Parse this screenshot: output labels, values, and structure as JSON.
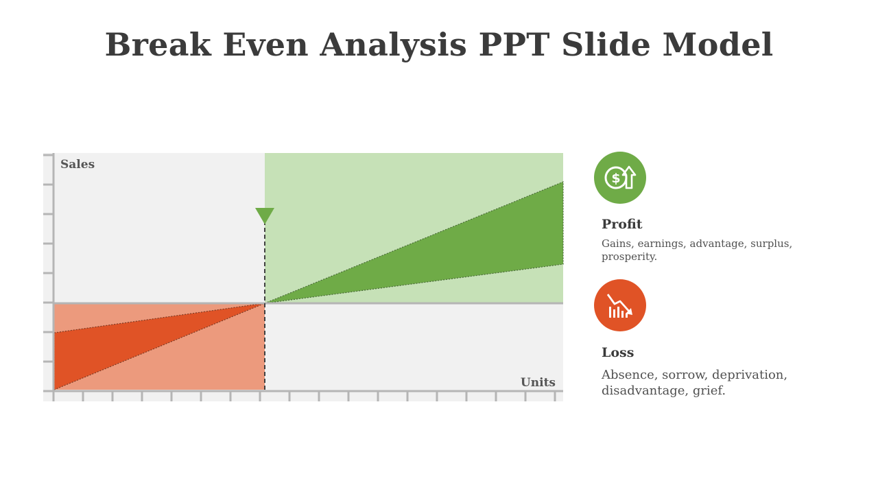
{
  "title": "Break Even Analysis PPT Slide Model",
  "chart": {
    "y_label": "Sales",
    "x_label": "Units",
    "colors": {
      "background": "#f1f1f1",
      "profit_region": "#c6e1b7",
      "profit_wedge": "#6fab47",
      "loss_region": "#ec9a7d",
      "loss_wedge": "#e05326",
      "axis": "#b5b5b5",
      "marker": "#6fab47"
    }
  },
  "legend": [
    {
      "id": "profit",
      "icon": "dollar-up-arrow-icon",
      "color": "#6fab47",
      "title": "Profit",
      "description": "Gains, earnings, advantage, surplus, prosperity."
    },
    {
      "id": "loss",
      "icon": "falling-bars-arrow-icon",
      "color": "#e05326",
      "title": "Loss",
      "description": "Absence, sorrow, deprivation, disadvantage, grief."
    }
  ]
}
